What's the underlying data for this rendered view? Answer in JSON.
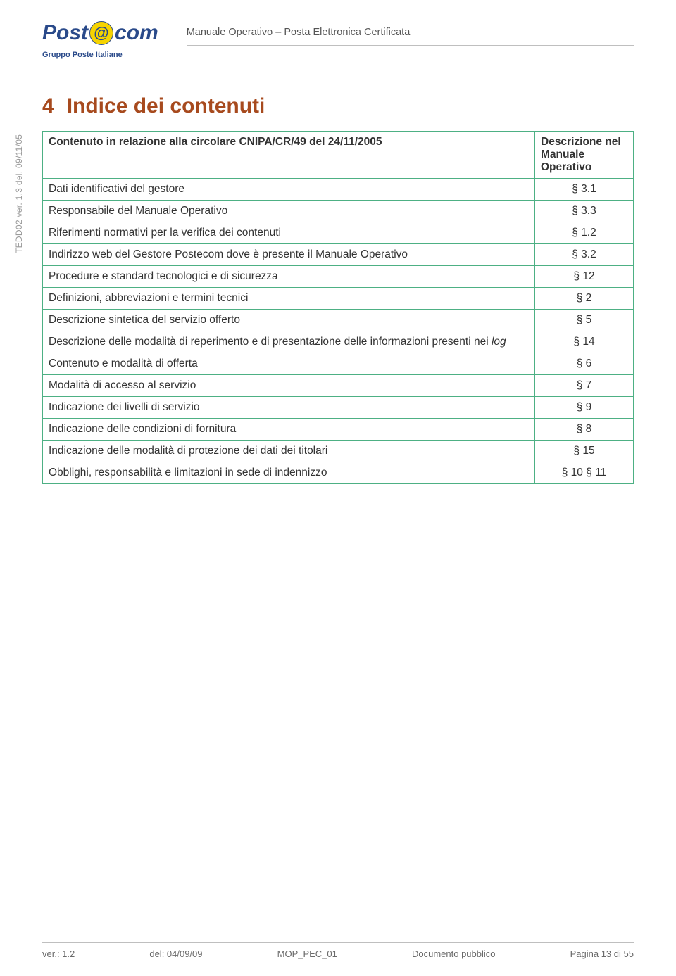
{
  "header": {
    "logo_prefix": "Post",
    "logo_at": "@",
    "logo_suffix": "com",
    "group_text": "Gruppo Poste Italiane",
    "doc_title": "Manuale Operativo – Posta Elettronica Certificata"
  },
  "side_text": "TEDD02 ver. 1.3 del. 09/11/05",
  "section": {
    "number": "4",
    "title": "Indice dei contenuti"
  },
  "table": {
    "header_left": "Contenuto in relazione alla circolare CNIPA/CR/49 del 24/11/2005",
    "header_right_line1": "Descrizione nel",
    "header_right_line2": "Manuale Operativo",
    "rows": [
      {
        "label": "Dati identificativi del gestore",
        "value": "§ 3.1"
      },
      {
        "label": "Responsabile del Manuale Operativo",
        "value": "§ 3.3"
      },
      {
        "label": "Riferimenti normativi per la verifica dei contenuti",
        "value": "§ 1.2"
      },
      {
        "label": "Indirizzo web del Gestore Postecom dove è presente il Manuale Operativo",
        "value": "§ 3.2"
      },
      {
        "label": "Procedure e standard tecnologici e di sicurezza",
        "value": "§ 12"
      },
      {
        "label": "Definizioni, abbreviazioni e termini tecnici",
        "value": "§ 2"
      },
      {
        "label": "Descrizione sintetica del servizio offerto",
        "value": "§ 5"
      },
      {
        "label_pre": "Descrizione delle modalità di reperimento e di presentazione delle informazioni presenti nei ",
        "label_italic": "log",
        "value": "§ 14"
      },
      {
        "label": "Contenuto e modalità di offerta",
        "value": "§ 6"
      },
      {
        "label": "Modalità di accesso al servizio",
        "value": "§ 7"
      },
      {
        "label": "Indicazione dei livelli di servizio",
        "value": "§ 9"
      },
      {
        "label": "Indicazione delle condizioni di fornitura",
        "value": "§ 8"
      },
      {
        "label": "Indicazione delle modalità di protezione dei dati dei titolari",
        "value": "§ 15"
      },
      {
        "label": "Obblighi, responsabilità e limitazioni in sede di indennizzo",
        "value": "§ 10 § 11"
      }
    ]
  },
  "footer": {
    "ver": "ver.: 1.2",
    "del": "del: 04/09/09",
    "doc_id": "MOP_PEC_01",
    "classification": "Documento pubblico",
    "page": "Pagina 13 di 55"
  },
  "colors": {
    "heading": "#a74a1e",
    "border": "#4db084",
    "muted": "#6a6a6a",
    "side": "#9a9a9a",
    "logo_blue": "#2a4a8a",
    "logo_yellow": "#f5d300"
  }
}
